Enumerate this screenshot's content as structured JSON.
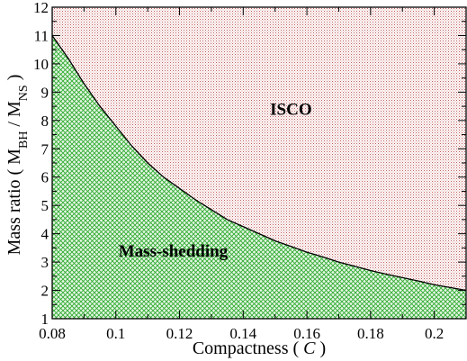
{
  "chart_data": {
    "type": "area",
    "xlabel": {
      "text": "Compactness",
      "symbol": "C"
    },
    "ylabel": {
      "text": "Mass ratio",
      "num": "M",
      "num_sub": "BH",
      "den": "M",
      "den_sub": "NS"
    },
    "xlim": [
      0.08,
      0.21
    ],
    "ylim": [
      1,
      12
    ],
    "xticks": [
      0.08,
      0.1,
      0.12,
      0.14,
      0.16,
      0.18,
      0.2
    ],
    "xtick_labels": [
      "0.08",
      "0.1",
      "0.12",
      "0.14",
      "0.16",
      "0.18",
      "0.2"
    ],
    "yticks": [
      1,
      2,
      3,
      4,
      5,
      6,
      7,
      8,
      9,
      10,
      11,
      12
    ],
    "ytick_labels": [
      "1",
      "2",
      "3",
      "4",
      "5",
      "6",
      "7",
      "8",
      "9",
      "10",
      "11",
      "12"
    ],
    "boundary": {
      "x": [
        0.08,
        0.085,
        0.09,
        0.095,
        0.1,
        0.105,
        0.11,
        0.115,
        0.12,
        0.125,
        0.13,
        0.135,
        0.14,
        0.145,
        0.15,
        0.155,
        0.16,
        0.165,
        0.17,
        0.175,
        0.18,
        0.185,
        0.19,
        0.195,
        0.2,
        0.205,
        0.21
      ],
      "y": [
        11.0,
        10.2,
        9.3,
        8.5,
        7.8,
        7.1,
        6.5,
        6.0,
        5.6,
        5.2,
        4.85,
        4.5,
        4.25,
        4.0,
        3.75,
        3.55,
        3.35,
        3.18,
        3.0,
        2.85,
        2.7,
        2.57,
        2.45,
        2.33,
        2.2,
        2.1,
        2.0
      ]
    },
    "regions": [
      {
        "label": "ISCO",
        "side": "above",
        "color": "#b04a4a",
        "label_at": [
          0.155,
          8.2
        ]
      },
      {
        "label": "Mass-shedding",
        "side": "below",
        "color": "#2faa2f",
        "label_at": [
          0.118,
          3.2
        ]
      }
    ],
    "grid": false
  }
}
